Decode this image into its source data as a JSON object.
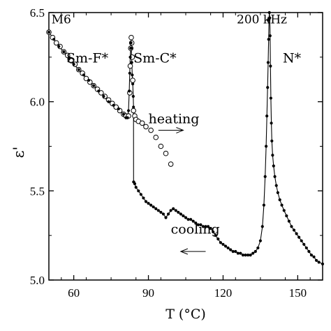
{
  "chart_data": {
    "type": "line",
    "xlabel": "T (°C)",
    "ylabel": "ε'",
    "xlim": [
      50,
      160
    ],
    "ylim": [
      5.0,
      6.5
    ],
    "x_ticks": [
      {
        "value": 60,
        "label": "60"
      },
      {
        "value": 90,
        "label": "90"
      },
      {
        "value": 120,
        "label": "120"
      },
      {
        "value": 150,
        "label": "150"
      }
    ],
    "y_ticks": [
      {
        "value": 5.0,
        "label": "5.0"
      },
      {
        "value": 5.5,
        "label": "5.5"
      },
      {
        "value": 6.0,
        "label": "6.0"
      },
      {
        "value": 6.5,
        "label": "6.5"
      }
    ],
    "annotations": [
      {
        "text": "M6",
        "x": 51,
        "y": 6.44
      },
      {
        "text": "Sm-F*",
        "x": 57,
        "y": 6.22
      },
      {
        "text": "Sm-C*",
        "x": 84,
        "y": 6.22
      },
      {
        "text": "200 kHz",
        "x": 125.5,
        "y": 6.44
      },
      {
        "text": "N*",
        "x": 144,
        "y": 6.22
      },
      {
        "text": "heating",
        "x": 90,
        "y": 5.88
      },
      {
        "text": "cooling",
        "x": 99,
        "y": 5.26
      }
    ],
    "arrows": [
      {
        "direction": "right",
        "x_from": 94,
        "x_to": 104,
        "y": 5.84
      },
      {
        "direction": "left",
        "x_from": 113,
        "x_to": 103,
        "y": 5.16
      }
    ],
    "series": [
      {
        "marker": "open-circle",
        "x": [
          50,
          51.5,
          53,
          54.5,
          56,
          57.5,
          59,
          60.5,
          62,
          63.5,
          65,
          66.5,
          68,
          69.5,
          71,
          72.5,
          74,
          75.5,
          77,
          78.5,
          80,
          81,
          82,
          82.5,
          82.7,
          82.9,
          83.1,
          83.3,
          83.5,
          83.7,
          84,
          84.5,
          85,
          86,
          87.5,
          89,
          91,
          93,
          95,
          97,
          99
        ],
        "y": [
          6.39,
          6.36,
          6.33,
          6.31,
          6.28,
          6.26,
          6.23,
          6.21,
          6.18,
          6.16,
          6.13,
          6.11,
          6.09,
          6.07,
          6.05,
          6.03,
          6.01,
          5.99,
          5.97,
          5.95,
          5.93,
          5.92,
          5.92,
          6.05,
          6.2,
          6.3,
          6.36,
          6.33,
          6.25,
          6.12,
          5.95,
          5.92,
          5.9,
          5.89,
          5.88,
          5.86,
          5.84,
          5.8,
          5.75,
          5.71,
          5.65
        ]
      },
      {
        "marker": "filled-dot",
        "x": [
          50,
          52,
          54,
          56,
          58,
          60,
          62,
          64,
          66,
          68,
          70,
          72,
          74,
          76,
          78,
          80,
          81,
          81.6,
          82,
          82.3,
          82.5,
          82.7,
          82.9,
          83,
          83.1,
          83.3,
          83.5,
          83.7,
          83.9,
          84,
          84.05,
          84.1,
          84.5,
          85,
          86,
          87,
          88,
          89,
          90,
          91,
          92,
          93,
          94,
          95,
          96,
          97,
          98,
          99,
          100,
          101,
          102,
          103,
          104,
          105,
          106,
          107,
          108,
          109,
          110,
          111,
          112,
          113,
          114,
          115,
          116,
          117,
          118,
          119,
          120,
          121,
          122,
          123,
          124,
          125,
          126,
          127,
          128,
          129,
          130,
          131,
          132,
          133,
          134,
          135,
          135.8,
          136.4,
          136.9,
          137.3,
          137.6,
          137.9,
          138.1,
          138.3,
          138.45,
          138.6,
          138.75,
          138.9,
          139.05,
          139.2,
          139.4,
          139.6,
          139.9,
          140.3,
          140.8,
          141.4,
          142,
          142.8,
          143.6,
          144.5,
          145.5,
          146.5,
          147.5,
          148.5,
          149.5,
          150.5,
          151.5,
          152.5,
          153.5,
          154.5,
          155.5,
          156.5,
          157.5,
          158.5,
          160
        ],
        "y": [
          6.39,
          6.35,
          6.31,
          6.28,
          6.24,
          6.21,
          6.18,
          6.15,
          6.12,
          6.09,
          6.06,
          6.03,
          6.0,
          5.98,
          5.96,
          5.93,
          5.91,
          5.91,
          5.95,
          6.06,
          6.16,
          6.25,
          6.3,
          6.33,
          6.3,
          6.22,
          6.15,
          6.1,
          6.03,
          5.97,
          5.55,
          5.55,
          5.54,
          5.52,
          5.5,
          5.48,
          5.46,
          5.44,
          5.43,
          5.42,
          5.41,
          5.4,
          5.39,
          5.38,
          5.37,
          5.35,
          5.37,
          5.39,
          5.4,
          5.39,
          5.38,
          5.37,
          5.36,
          5.35,
          5.34,
          5.34,
          5.33,
          5.32,
          5.31,
          5.31,
          5.3,
          5.3,
          5.3,
          5.29,
          5.27,
          5.25,
          5.23,
          5.21,
          5.2,
          5.19,
          5.18,
          5.17,
          5.16,
          5.16,
          5.15,
          5.15,
          5.14,
          5.14,
          5.14,
          5.14,
          5.15,
          5.16,
          5.18,
          5.22,
          5.3,
          5.42,
          5.58,
          5.75,
          5.92,
          6.08,
          6.22,
          6.35,
          6.46,
          6.5,
          6.47,
          6.37,
          6.2,
          6.02,
          5.88,
          5.78,
          5.7,
          5.64,
          5.58,
          5.53,
          5.49,
          5.45,
          5.42,
          5.39,
          5.36,
          5.33,
          5.3,
          5.28,
          5.26,
          5.24,
          5.22,
          5.2,
          5.18,
          5.16,
          5.14,
          5.13,
          5.11,
          5.1,
          5.09
        ]
      }
    ]
  }
}
